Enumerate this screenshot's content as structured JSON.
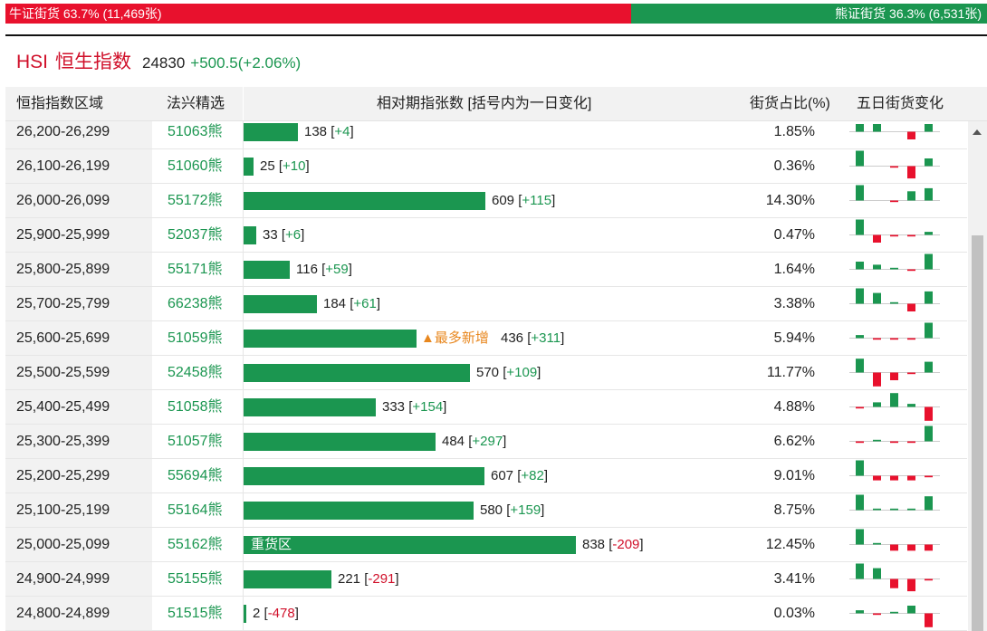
{
  "summary": {
    "bull_label": "牛证街货 63.7% (11,469张)",
    "bear_label": "熊证街货 36.3% (6,531张)",
    "bull_pct": 63.7,
    "bear_pct": 36.3,
    "bull_color": "#e8112d",
    "bear_color": "#1b9650"
  },
  "index": {
    "code": "HSI",
    "name": "恒生指数",
    "value": "24830",
    "change": "+500.5(+2.06%)"
  },
  "table": {
    "headers": {
      "range": "恒指指数区域",
      "pick": "法兴精选",
      "qty": "相对期指张数 [括号内为一日变化]",
      "pct": "街货占比(%)",
      "trend": "五日街货变化"
    },
    "max_qty": 838,
    "rows": [
      {
        "range": "26,200-26,299",
        "code": "51063熊",
        "qty": 138,
        "qty_text": "138",
        "chg": "+4",
        "pct": "1.85%",
        "trend": [
          5,
          5,
          0,
          -5,
          5
        ]
      },
      {
        "range": "26,100-26,199",
        "code": "51060熊",
        "qty": 25,
        "qty_text": "25",
        "chg": "+10",
        "pct": "0.36%",
        "trend": [
          10,
          0,
          -1,
          -8,
          5
        ]
      },
      {
        "range": "26,000-26,099",
        "code": "55172熊",
        "qty": 609,
        "qty_text": "609",
        "chg": "+115",
        "pct": "14.30%",
        "trend": [
          10,
          0,
          -1,
          6,
          8
        ]
      },
      {
        "range": "25,900-25,999",
        "code": "52037熊",
        "qty": 33,
        "qty_text": "33",
        "chg": "+6",
        "pct": "0.47%",
        "trend": [
          10,
          -5,
          -1,
          -1,
          2
        ]
      },
      {
        "range": "25,800-25,899",
        "code": "55171熊",
        "qty": 116,
        "qty_text": "116",
        "chg": "+59",
        "pct": "1.64%",
        "trend": [
          5,
          3,
          1,
          -1,
          10
        ]
      },
      {
        "range": "25,700-25,799",
        "code": "66238熊",
        "qty": 184,
        "qty_text": "184",
        "chg": "+61",
        "pct": "3.38%",
        "trend": [
          10,
          7,
          1,
          -5,
          8
        ]
      },
      {
        "range": "25,600-25,699",
        "code": "51059熊",
        "qty": 436,
        "qty_text": "436",
        "chg": "+311",
        "pct": "5.94%",
        "badge": "▲最多新增",
        "trend": [
          2,
          -1,
          -1,
          -1,
          10
        ]
      },
      {
        "range": "25,500-25,599",
        "code": "52458熊",
        "qty": 570,
        "qty_text": "570",
        "chg": "+109",
        "pct": "11.77%",
        "trend": [
          9,
          -9,
          -5,
          -1,
          7
        ]
      },
      {
        "range": "25,400-25,499",
        "code": "51058熊",
        "qty": 333,
        "qty_text": "333",
        "chg": "+154",
        "pct": "4.88%",
        "trend": [
          -1,
          3,
          9,
          2,
          -9
        ]
      },
      {
        "range": "25,300-25,399",
        "code": "51057熊",
        "qty": 484,
        "qty_text": "484",
        "chg": "+297",
        "pct": "6.62%",
        "trend": [
          -1,
          1,
          -1,
          -1,
          10
        ]
      },
      {
        "range": "25,200-25,299",
        "code": "55694熊",
        "qty": 607,
        "qty_text": "607",
        "chg": "+82",
        "pct": "9.01%",
        "trend": [
          10,
          -3,
          -3,
          -3,
          -1
        ]
      },
      {
        "range": "25,100-25,199",
        "code": "55164熊",
        "qty": 580,
        "qty_text": "580",
        "chg": "+159",
        "pct": "8.75%",
        "trend": [
          10,
          1,
          1,
          1,
          9
        ]
      },
      {
        "range": "25,000-25,099",
        "code": "55162熊",
        "qty": 838,
        "qty_text": "838",
        "chg": "-209",
        "pct": "12.45%",
        "label": "重货区",
        "trend": [
          10,
          1,
          -4,
          -4,
          -4
        ]
      },
      {
        "range": "24,900-24,999",
        "code": "55155熊",
        "qty": 221,
        "qty_text": "221",
        "chg": "-291",
        "pct": "3.41%",
        "trend": [
          10,
          7,
          -6,
          -8,
          -1
        ]
      },
      {
        "range": "24,800-24,899",
        "code": "51515熊",
        "qty": 2,
        "qty_text": "2",
        "chg": "-478",
        "pct": "0.03%",
        "trend": [
          2,
          -1,
          1,
          5,
          -9
        ]
      }
    ]
  }
}
